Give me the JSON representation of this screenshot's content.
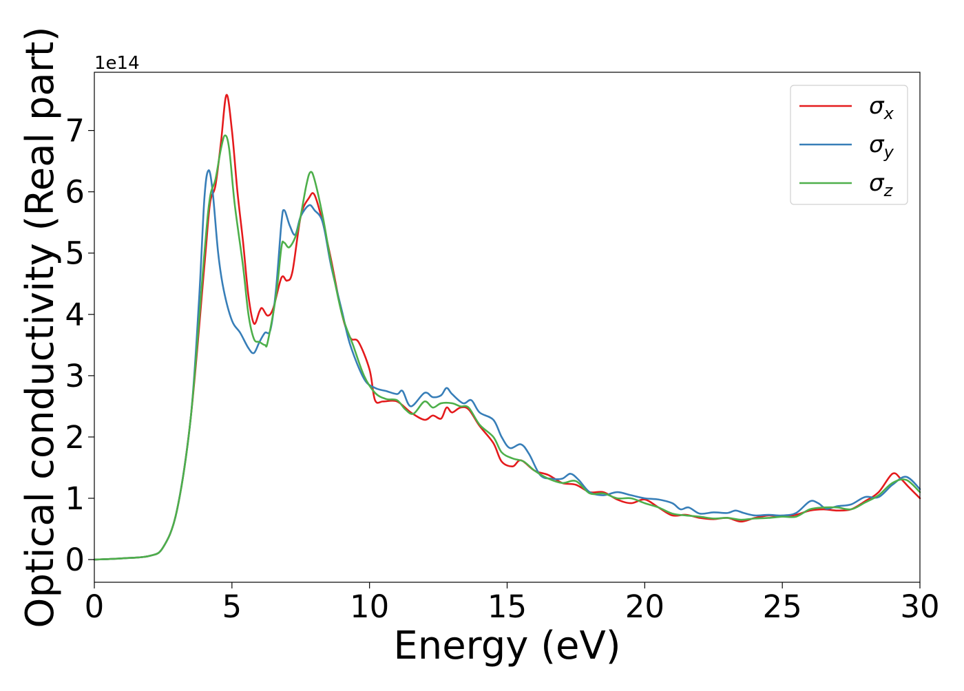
{
  "chart_data": {
    "type": "line",
    "title": "",
    "xlabel": "Energy (eV)",
    "ylabel": "Optical conductivity (Real part)",
    "y_offset_text": "1e14",
    "xlim": [
      0,
      30
    ],
    "ylim": [
      -0.37,
      7.95
    ],
    "x_ticks": [
      0,
      5,
      10,
      15,
      20,
      25,
      30
    ],
    "y_ticks": [
      0,
      1,
      2,
      3,
      4,
      5,
      6,
      7
    ],
    "grid": false,
    "legend_position": "top-right",
    "series": [
      {
        "name": "σ",
        "subscript": "x",
        "color": "#e41a1c",
        "points": [
          [
            0,
            0
          ],
          [
            1,
            0.02
          ],
          [
            2,
            0.06
          ],
          [
            2.5,
            0.2
          ],
          [
            3,
            0.8
          ],
          [
            3.5,
            2.3
          ],
          [
            4,
            4.8
          ],
          [
            4.2,
            5.8
          ],
          [
            4.4,
            6.1
          ],
          [
            4.6,
            6.8
          ],
          [
            4.8,
            7.58
          ],
          [
            5,
            7.0
          ],
          [
            5.2,
            6.0
          ],
          [
            5.4,
            5.2
          ],
          [
            5.6,
            4.3
          ],
          [
            5.8,
            3.85
          ],
          [
            6,
            4.05
          ],
          [
            6.1,
            4.1
          ],
          [
            6.3,
            3.98
          ],
          [
            6.5,
            4.1
          ],
          [
            6.8,
            4.6
          ],
          [
            7.0,
            4.55
          ],
          [
            7.2,
            4.7
          ],
          [
            7.5,
            5.6
          ],
          [
            7.8,
            5.9
          ],
          [
            8.0,
            5.95
          ],
          [
            8.3,
            5.5
          ],
          [
            8.6,
            4.9
          ],
          [
            9.0,
            4.0
          ],
          [
            9.3,
            3.62
          ],
          [
            9.6,
            3.55
          ],
          [
            10,
            3.1
          ],
          [
            10.2,
            2.6
          ],
          [
            10.5,
            2.58
          ],
          [
            11,
            2.58
          ],
          [
            11.5,
            2.4
          ],
          [
            12,
            2.28
          ],
          [
            12.3,
            2.35
          ],
          [
            12.6,
            2.3
          ],
          [
            12.8,
            2.48
          ],
          [
            13.0,
            2.4
          ],
          [
            13.3,
            2.48
          ],
          [
            13.6,
            2.45
          ],
          [
            14,
            2.18
          ],
          [
            14.5,
            1.9
          ],
          [
            14.8,
            1.6
          ],
          [
            15.2,
            1.52
          ],
          [
            15.5,
            1.62
          ],
          [
            16,
            1.45
          ],
          [
            16.5,
            1.38
          ],
          [
            17,
            1.25
          ],
          [
            17.5,
            1.22
          ],
          [
            18,
            1.1
          ],
          [
            18.5,
            1.1
          ],
          [
            19,
            0.98
          ],
          [
            19.5,
            0.92
          ],
          [
            20,
            0.98
          ],
          [
            20.5,
            0.85
          ],
          [
            21,
            0.72
          ],
          [
            21.5,
            0.73
          ],
          [
            22,
            0.68
          ],
          [
            22.5,
            0.66
          ],
          [
            23,
            0.68
          ],
          [
            23.5,
            0.62
          ],
          [
            24,
            0.68
          ],
          [
            24.5,
            0.72
          ],
          [
            25,
            0.7
          ],
          [
            25.5,
            0.73
          ],
          [
            26,
            0.8
          ],
          [
            26.5,
            0.82
          ],
          [
            27,
            0.8
          ],
          [
            27.5,
            0.82
          ],
          [
            28,
            0.95
          ],
          [
            28.5,
            1.1
          ],
          [
            29,
            1.4
          ],
          [
            29.3,
            1.32
          ],
          [
            29.6,
            1.18
          ],
          [
            30,
            1.0
          ]
        ]
      },
      {
        "name": "σ",
        "subscript": "y",
        "color": "#377eb8",
        "points": [
          [
            0,
            0
          ],
          [
            1,
            0.02
          ],
          [
            2,
            0.06
          ],
          [
            2.5,
            0.2
          ],
          [
            3,
            0.8
          ],
          [
            3.5,
            2.3
          ],
          [
            3.8,
            4.2
          ],
          [
            4.0,
            5.9
          ],
          [
            4.15,
            6.35
          ],
          [
            4.3,
            6.0
          ],
          [
            4.5,
            5.0
          ],
          [
            4.7,
            4.4
          ],
          [
            5.0,
            3.9
          ],
          [
            5.3,
            3.7
          ],
          [
            5.6,
            3.45
          ],
          [
            5.8,
            3.37
          ],
          [
            6.0,
            3.55
          ],
          [
            6.2,
            3.7
          ],
          [
            6.4,
            3.75
          ],
          [
            6.6,
            4.4
          ],
          [
            6.8,
            5.5
          ],
          [
            6.9,
            5.7
          ],
          [
            7.1,
            5.45
          ],
          [
            7.3,
            5.3
          ],
          [
            7.5,
            5.6
          ],
          [
            7.8,
            5.78
          ],
          [
            8.0,
            5.7
          ],
          [
            8.3,
            5.5
          ],
          [
            8.6,
            4.8
          ],
          [
            9.0,
            4.05
          ],
          [
            9.3,
            3.5
          ],
          [
            9.8,
            2.95
          ],
          [
            10.2,
            2.8
          ],
          [
            10.6,
            2.75
          ],
          [
            11,
            2.7
          ],
          [
            11.2,
            2.75
          ],
          [
            11.5,
            2.5
          ],
          [
            12,
            2.72
          ],
          [
            12.3,
            2.65
          ],
          [
            12.6,
            2.68
          ],
          [
            12.8,
            2.8
          ],
          [
            13.0,
            2.7
          ],
          [
            13.4,
            2.55
          ],
          [
            13.7,
            2.6
          ],
          [
            14,
            2.4
          ],
          [
            14.5,
            2.28
          ],
          [
            14.8,
            2.0
          ],
          [
            15.1,
            1.82
          ],
          [
            15.5,
            1.88
          ],
          [
            15.8,
            1.72
          ],
          [
            16.2,
            1.38
          ],
          [
            16.6,
            1.32
          ],
          [
            17,
            1.32
          ],
          [
            17.3,
            1.4
          ],
          [
            17.6,
            1.3
          ],
          [
            18,
            1.1
          ],
          [
            18.5,
            1.05
          ],
          [
            19,
            1.1
          ],
          [
            19.5,
            1.05
          ],
          [
            20,
            1.0
          ],
          [
            20.5,
            0.98
          ],
          [
            21,
            0.92
          ],
          [
            21.3,
            0.82
          ],
          [
            21.6,
            0.85
          ],
          [
            22,
            0.75
          ],
          [
            22.5,
            0.77
          ],
          [
            23,
            0.76
          ],
          [
            23.3,
            0.8
          ],
          [
            23.6,
            0.76
          ],
          [
            24,
            0.72
          ],
          [
            24.5,
            0.73
          ],
          [
            25,
            0.72
          ],
          [
            25.5,
            0.76
          ],
          [
            26,
            0.95
          ],
          [
            26.3,
            0.92
          ],
          [
            26.6,
            0.83
          ],
          [
            27,
            0.87
          ],
          [
            27.5,
            0.9
          ],
          [
            28,
            1.02
          ],
          [
            28.5,
            1.02
          ],
          [
            29,
            1.22
          ],
          [
            29.5,
            1.35
          ],
          [
            30,
            1.15
          ]
        ]
      },
      {
        "name": "σ",
        "subscript": "z",
        "color": "#4daf4a",
        "points": [
          [
            0,
            0
          ],
          [
            1,
            0.02
          ],
          [
            2,
            0.06
          ],
          [
            2.5,
            0.2
          ],
          [
            3,
            0.8
          ],
          [
            3.5,
            2.3
          ],
          [
            4,
            5.0
          ],
          [
            4.2,
            5.9
          ],
          [
            4.4,
            6.2
          ],
          [
            4.6,
            6.7
          ],
          [
            4.75,
            6.92
          ],
          [
            4.9,
            6.7
          ],
          [
            5.1,
            5.8
          ],
          [
            5.4,
            4.8
          ],
          [
            5.6,
            4.0
          ],
          [
            5.8,
            3.6
          ],
          [
            6.0,
            3.55
          ],
          [
            6.2,
            3.5
          ],
          [
            6.3,
            3.55
          ],
          [
            6.6,
            4.3
          ],
          [
            6.8,
            5.1
          ],
          [
            6.9,
            5.17
          ],
          [
            7.1,
            5.1
          ],
          [
            7.4,
            5.4
          ],
          [
            7.7,
            6.1
          ],
          [
            7.85,
            6.32
          ],
          [
            8.0,
            6.2
          ],
          [
            8.3,
            5.6
          ],
          [
            8.6,
            4.85
          ],
          [
            9.0,
            4.0
          ],
          [
            9.4,
            3.5
          ],
          [
            9.8,
            3.0
          ],
          [
            10.2,
            2.72
          ],
          [
            10.6,
            2.62
          ],
          [
            11,
            2.6
          ],
          [
            11.3,
            2.45
          ],
          [
            11.6,
            2.38
          ],
          [
            12,
            2.58
          ],
          [
            12.3,
            2.48
          ],
          [
            12.6,
            2.55
          ],
          [
            13,
            2.55
          ],
          [
            13.3,
            2.5
          ],
          [
            13.6,
            2.48
          ],
          [
            14,
            2.2
          ],
          [
            14.5,
            2.0
          ],
          [
            14.8,
            1.75
          ],
          [
            15.2,
            1.65
          ],
          [
            15.6,
            1.6
          ],
          [
            16,
            1.45
          ],
          [
            16.5,
            1.32
          ],
          [
            17,
            1.25
          ],
          [
            17.5,
            1.28
          ],
          [
            18,
            1.08
          ],
          [
            18.5,
            1.08
          ],
          [
            19,
            1.0
          ],
          [
            19.5,
            1.0
          ],
          [
            20,
            0.92
          ],
          [
            20.5,
            0.85
          ],
          [
            21,
            0.75
          ],
          [
            21.5,
            0.72
          ],
          [
            22,
            0.7
          ],
          [
            22.5,
            0.67
          ],
          [
            23,
            0.68
          ],
          [
            23.5,
            0.65
          ],
          [
            24,
            0.67
          ],
          [
            24.5,
            0.68
          ],
          [
            25,
            0.7
          ],
          [
            25.5,
            0.7
          ],
          [
            26,
            0.82
          ],
          [
            26.5,
            0.85
          ],
          [
            27,
            0.85
          ],
          [
            27.5,
            0.82
          ],
          [
            28,
            0.93
          ],
          [
            28.5,
            1.05
          ],
          [
            29,
            1.25
          ],
          [
            29.5,
            1.3
          ],
          [
            30,
            1.1
          ]
        ]
      }
    ]
  }
}
